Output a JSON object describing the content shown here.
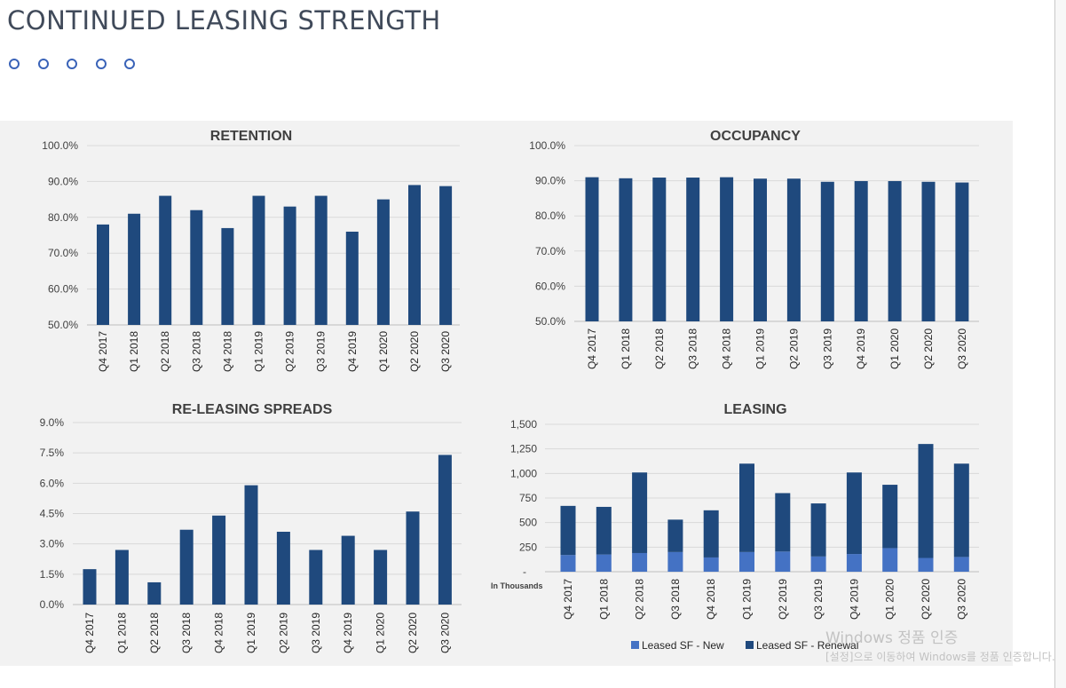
{
  "page": {
    "title": "CONTINUED LEASING STRENGTH",
    "watermark_title": "Windows 정품 인증",
    "watermark_sub": "[설정]으로 이동하여 Windows를 정품 인증합니다."
  },
  "colors": {
    "bar": "#1f497d",
    "bar_new": "#4472c4",
    "panel": "#f2f2f2",
    "grid": "#d9d9d9",
    "accent": "#3a63b8"
  },
  "chart_data": [
    {
      "id": "retention",
      "type": "bar",
      "title": "RETENTION",
      "categories": [
        "Q4 2017",
        "Q1 2018",
        "Q2 2018",
        "Q3 2018",
        "Q4 2018",
        "Q1 2019",
        "Q2 2019",
        "Q3 2019",
        "Q4 2019",
        "Q1 2020",
        "Q2 2020",
        "Q3 2020"
      ],
      "values": [
        78,
        81,
        86,
        82,
        77,
        86,
        83,
        86,
        76,
        85,
        89,
        88.7
      ],
      "ylim": [
        50,
        100
      ],
      "yticks": [
        "50.0%",
        "60.0%",
        "70.0%",
        "80.0%",
        "90.0%",
        "100.0%"
      ]
    },
    {
      "id": "occupancy",
      "type": "bar",
      "title": "OCCUPANCY",
      "categories": [
        "Q4 2017",
        "Q1 2018",
        "Q2 2018",
        "Q3 2018",
        "Q4 2018",
        "Q1 2019",
        "Q2 2019",
        "Q3 2019",
        "Q4 2019",
        "Q1 2020",
        "Q2 2020",
        "Q3 2020"
      ],
      "values": [
        91,
        90.7,
        90.9,
        90.9,
        91,
        90.6,
        90.6,
        89.7,
        89.9,
        89.9,
        89.7,
        89.5
      ],
      "ylim": [
        50,
        100
      ],
      "yticks": [
        "50.0%",
        "60.0%",
        "70.0%",
        "80.0%",
        "90.0%",
        "100.0%"
      ]
    },
    {
      "id": "releasing",
      "type": "bar",
      "title": "RE-LEASING SPREADS",
      "categories": [
        "Q4 2017",
        "Q1 2018",
        "Q2 2018",
        "Q3 2018",
        "Q4 2018",
        "Q1 2019",
        "Q2 2019",
        "Q3 2019",
        "Q4 2019",
        "Q1 2020",
        "Q2 2020",
        "Q3 2020"
      ],
      "values": [
        1.75,
        2.7,
        1.1,
        3.7,
        4.4,
        5.9,
        3.6,
        2.7,
        3.4,
        2.7,
        4.6,
        7.4
      ],
      "ylim": [
        0,
        9
      ],
      "yticks": [
        "0.0%",
        "1.5%",
        "3.0%",
        "4.5%",
        "6.0%",
        "7.5%",
        "9.0%"
      ]
    },
    {
      "id": "leasing",
      "type": "stacked-bar",
      "title": "LEASING",
      "categories": [
        "Q4 2017",
        "Q1 2018",
        "Q2 2018",
        "Q3 2018",
        "Q4 2018",
        "Q1 2019",
        "Q2 2019",
        "Q3 2019",
        "Q4 2019",
        "Q1 2020",
        "Q2 2020",
        "Q3 2020"
      ],
      "series": [
        {
          "name": "Leased SF - New",
          "values": [
            170,
            175,
            190,
            200,
            145,
            200,
            205,
            155,
            180,
            240,
            140,
            150
          ]
        },
        {
          "name": "Leased SF - Renewal",
          "values": [
            500,
            485,
            820,
            330,
            480,
            900,
            595,
            540,
            830,
            645,
            1160,
            950
          ]
        }
      ],
      "ylim": [
        0,
        1500
      ],
      "yticks": [
        "-",
        "250",
        "500",
        "750",
        "1,000",
        "1,250",
        "1,500"
      ],
      "unit_label": "In Thousands"
    }
  ]
}
